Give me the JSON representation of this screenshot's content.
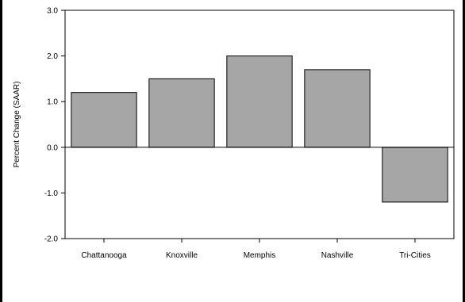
{
  "chart_data": {
    "type": "bar",
    "categories": [
      "Chattanooga",
      "Knoxville",
      "Memphis",
      "Nashville",
      "Tri-Cities"
    ],
    "values": [
      1.2,
      1.5,
      2.0,
      1.7,
      -1.2
    ],
    "title": "",
    "xlabel": "",
    "ylabel": "Percent Change (SAAR)",
    "ylim": [
      -2.0,
      3.0
    ],
    "yticks": [
      "-2.0",
      "-1.0",
      "0.0",
      "1.0",
      "2.0",
      "3.0"
    ],
    "grid": false,
    "bar_color": "#a6a6a6",
    "bar_edge_color": "#000000"
  }
}
